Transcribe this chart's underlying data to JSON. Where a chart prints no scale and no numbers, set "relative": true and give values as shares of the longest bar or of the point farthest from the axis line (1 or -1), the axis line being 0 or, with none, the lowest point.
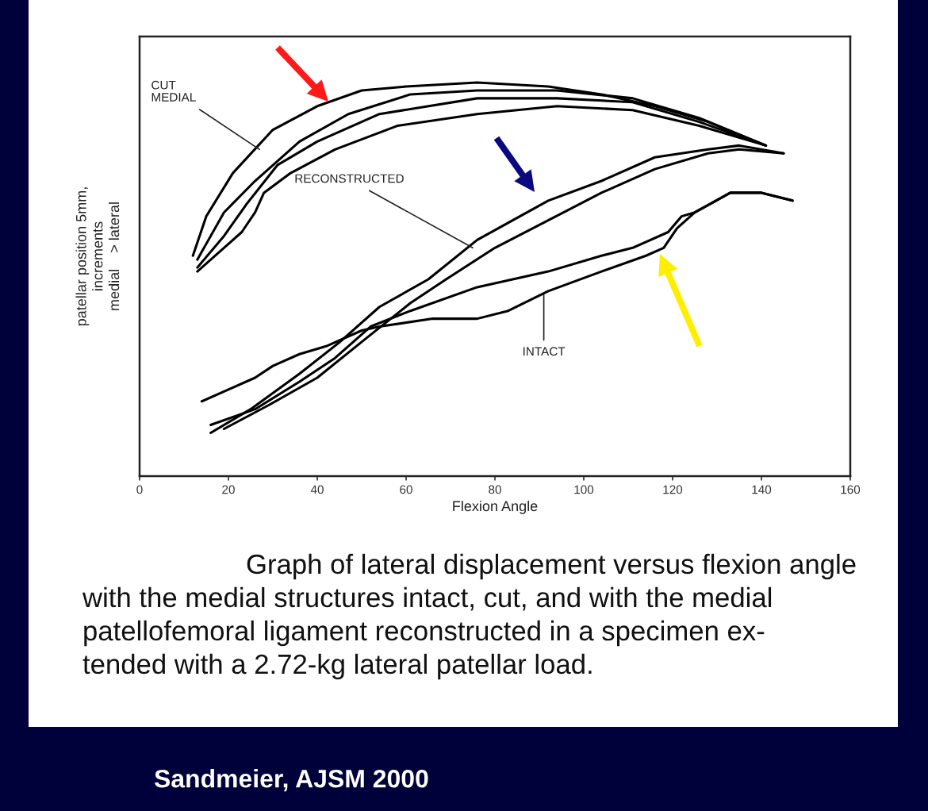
{
  "chart_data": {
    "type": "line",
    "relative": true,
    "xlabel": "Flexion Angle",
    "ylabel": "patellar position 5mm,\nincrements\nmedial    > lateral",
    "xlim": [
      0,
      160
    ],
    "xticks": [
      0,
      20,
      40,
      60,
      80,
      100,
      120,
      140,
      160
    ],
    "series": [
      {
        "color": "#000000",
        "x": [
          12,
          15,
          21,
          30,
          40,
          50,
          60,
          76,
          92,
          104,
          116,
          128,
          141
        ],
        "values": [
          0.56,
          0.66,
          0.77,
          0.88,
          0.94,
          0.98,
          0.99,
          1.0,
          0.99,
          0.97,
          0.94,
          0.9,
          0.84
        ]
      },
      {
        "color": "#000000",
        "x": [
          13,
          19,
          26,
          36,
          47,
          61,
          76,
          94,
          111,
          126,
          141
        ],
        "values": [
          0.55,
          0.67,
          0.75,
          0.85,
          0.92,
          0.97,
          0.98,
          0.98,
          0.96,
          0.91,
          0.84
        ]
      },
      {
        "color": "#000000",
        "x": [
          13,
          19,
          24,
          31,
          40,
          54,
          76,
          94,
          111,
          126,
          141
        ],
        "values": [
          0.53,
          0.61,
          0.69,
          0.79,
          0.85,
          0.92,
          0.96,
          0.96,
          0.95,
          0.9,
          0.84
        ]
      },
      {
        "color": "#000000",
        "x": [
          13,
          19,
          23,
          26,
          28,
          34,
          44,
          58,
          76,
          94,
          111,
          126,
          141
        ],
        "values": [
          0.52,
          0.58,
          0.62,
          0.67,
          0.72,
          0.77,
          0.83,
          0.89,
          0.92,
          0.94,
          0.93,
          0.89,
          0.84
        ]
      },
      {
        "color": "#000000",
        "x": [
          16,
          25,
          36,
          45,
          54,
          65,
          76,
          92,
          104,
          116,
          128,
          135,
          145
        ],
        "values": [
          0.11,
          0.17,
          0.26,
          0.34,
          0.43,
          0.5,
          0.6,
          0.7,
          0.75,
          0.81,
          0.83,
          0.84,
          0.82
        ]
      },
      {
        "color": "#000000",
        "x": [
          19,
          29,
          40,
          51,
          61,
          69,
          80,
          92,
          104,
          116,
          128,
          135,
          145
        ],
        "values": [
          0.12,
          0.18,
          0.25,
          0.35,
          0.44,
          0.5,
          0.58,
          0.65,
          0.72,
          0.78,
          0.82,
          0.83,
          0.82
        ]
      },
      {
        "color": "#000000",
        "x": [
          16,
          26,
          36,
          44,
          52,
          61,
          76,
          92,
          104,
          111,
          119,
          122,
          125,
          133,
          140,
          147
        ],
        "values": [
          0.13,
          0.17,
          0.24,
          0.3,
          0.38,
          0.42,
          0.48,
          0.52,
          0.56,
          0.58,
          0.62,
          0.66,
          0.67,
          0.72,
          0.72,
          0.7
        ]
      },
      {
        "color": "#000000",
        "x": [
          14,
          20,
          26,
          30,
          36,
          42,
          50,
          54,
          66,
          76,
          83,
          92,
          104,
          114,
          118,
          121,
          125,
          133,
          140,
          147
        ],
        "values": [
          0.19,
          0.22,
          0.25,
          0.28,
          0.31,
          0.33,
          0.37,
          0.38,
          0.4,
          0.4,
          0.42,
          0.47,
          0.52,
          0.56,
          0.58,
          0.63,
          0.67,
          0.72,
          0.72,
          0.7
        ]
      }
    ],
    "annotations": [
      {
        "text": "CUT\nMEDIAL",
        "x": 27,
        "y": 0.83
      },
      {
        "text": "RECONSTRUCTED",
        "x": 75,
        "y": 0.58
      },
      {
        "text": "INTACT",
        "x": 91,
        "y": 0.46
      },
      "Graph of lateral displacement versus flexion angle\nwith the medial structures intact, cut, and with the medial\npatellofemoral ligament reconstructed in a specimen ex-\ntended with a 2.72-kg lateral patellar load.",
      "Sandmeier, AJSM 2000"
    ]
  }
}
